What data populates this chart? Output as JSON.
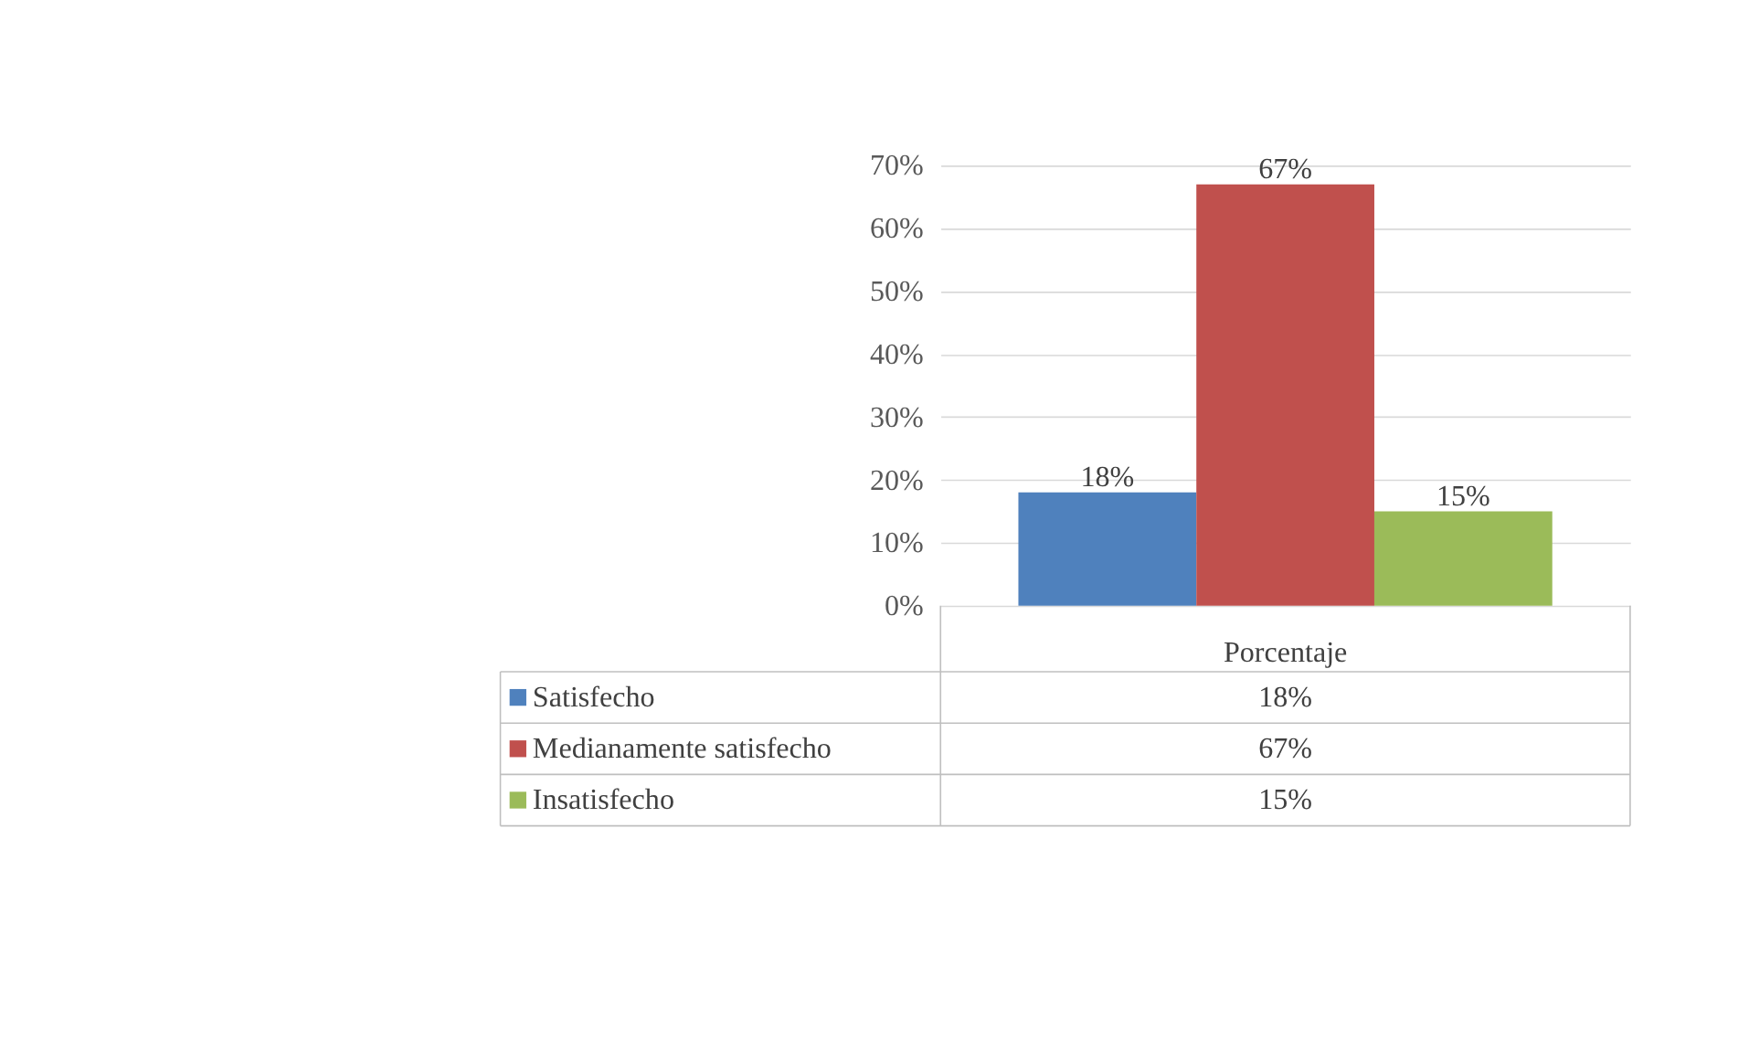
{
  "chart_data": {
    "type": "bar",
    "categories": [
      "Porcentaje"
    ],
    "series": [
      {
        "name": "Satisfecho",
        "color": "#4f81bd",
        "values": [
          18
        ],
        "value_labels": [
          "18%"
        ]
      },
      {
        "name": "Medianamente satisfecho",
        "color": "#c0504d",
        "values": [
          67
        ],
        "value_labels": [
          "67%"
        ]
      },
      {
        "name": "Insatisfecho",
        "color": "#9bbb59",
        "values": [
          15
        ],
        "value_labels": [
          "15%"
        ]
      }
    ],
    "ylim": [
      0,
      70
    ],
    "yticks": [
      {
        "value": 0,
        "label": "0%"
      },
      {
        "value": 10,
        "label": "10%"
      },
      {
        "value": 20,
        "label": "20%"
      },
      {
        "value": 30,
        "label": "30%"
      },
      {
        "value": 40,
        "label": "40%"
      },
      {
        "value": 50,
        "label": "50%"
      },
      {
        "value": 60,
        "label": "60%"
      },
      {
        "value": 70,
        "label": "70%"
      }
    ],
    "grid": "y",
    "legend": "bottom"
  }
}
